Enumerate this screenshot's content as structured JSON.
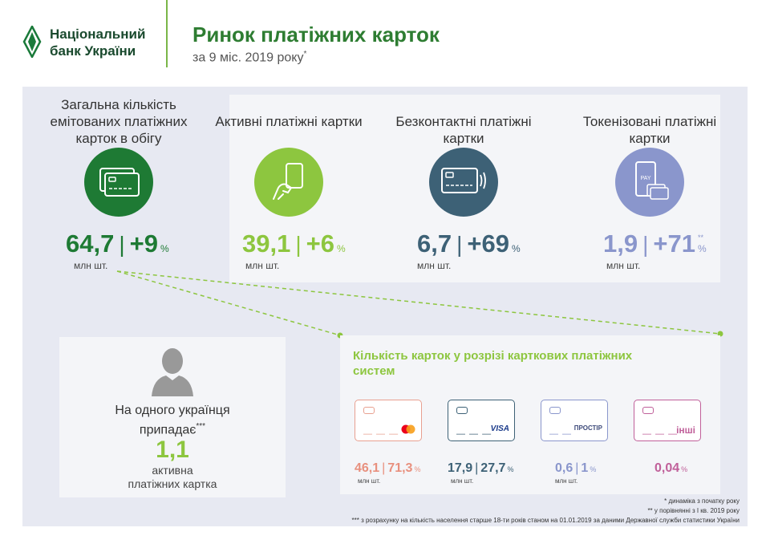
{
  "header": {
    "logo_line1": "Національний",
    "logo_line2": "банк України",
    "title": "Ринок платіжних карток",
    "subtitle": "за 9 міс. 2019 року",
    "subtitle_mark": "*"
  },
  "stats": [
    {
      "head": "Загальна кількість емітованих платіжних карток в обігу",
      "value": "64,7",
      "change": "+9",
      "pct": "%",
      "pct_mark": "",
      "unit": "млн шт.",
      "color": "#1e7a34",
      "icon": "cards-icon"
    },
    {
      "head": "Активні платіжні картки",
      "value": "39,1",
      "change": "+6",
      "pct": "%",
      "pct_mark": "",
      "unit": "млн шт.",
      "color": "#8dc63f",
      "icon": "hand-card-icon"
    },
    {
      "head": "Безконтактні платіжні картки",
      "value": "6,7",
      "change": "+69",
      "pct": "%",
      "pct_mark": "",
      "unit": "млн шт.",
      "color": "#3d6176",
      "icon": "contactless-card-icon"
    },
    {
      "head": "Токенізовані платіжні картки",
      "value": "1,9",
      "change": "+71",
      "pct": "%",
      "pct_mark": "**",
      "unit": "млн шт.",
      "color": "#8a96cc",
      "icon": "phone-pay-icon"
    }
  ],
  "person": {
    "line1": "На одного українця",
    "line2": "припадає",
    "mark": "***",
    "value": "1,1",
    "sub1": "активна",
    "sub2": "платіжних картка"
  },
  "systems": {
    "title": "Кількість карток у розрізі карткових платіжних систем",
    "items": [
      {
        "brand": "Mastercard",
        "value": "46,1",
        "share": "71,3",
        "pct": "%",
        "unit": "млн шт.",
        "color": "#e8907e"
      },
      {
        "brand": "VISA",
        "value": "17,9",
        "share": "27,7",
        "pct": "%",
        "unit": "млн шт.",
        "color": "#3d6176"
      },
      {
        "brand": "ПРОСТІР",
        "value": "0,6",
        "share": "1",
        "pct": "%",
        "unit": "млн шт.",
        "color": "#8a96cc"
      },
      {
        "brand": "інші",
        "value": "0,04",
        "share": "",
        "pct": "%",
        "unit": "",
        "color": "#c0609a"
      }
    ]
  },
  "footnotes": [
    "* динаміка з початку року",
    "** у порівнянні з I кв. 2019 року",
    "*** з розрахунку на кількість населення старше 18-ти років станом на 01.01.2019 за даними Державної служби статистики України"
  ]
}
